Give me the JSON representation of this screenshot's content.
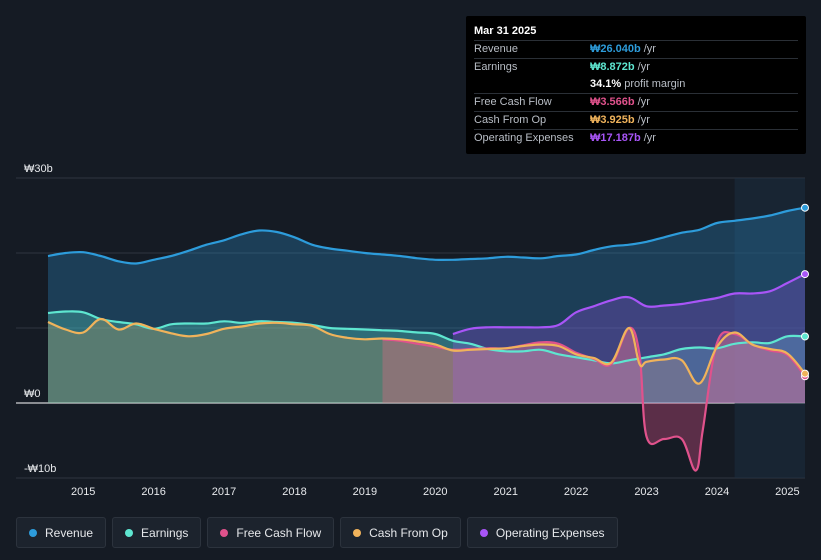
{
  "tooltip": {
    "date": "Mar 31 2025",
    "rows": [
      {
        "label": "Revenue",
        "value": "₩26.040b",
        "unit": "/yr",
        "color": "#2d9cdb"
      },
      {
        "label": "Earnings",
        "value": "₩8.872b",
        "unit": "/yr",
        "color": "#5ee6d0"
      },
      {
        "label": "",
        "value": "34.1%",
        "unit": "profit margin",
        "color": "#ffffff"
      },
      {
        "label": "Free Cash Flow",
        "value": "₩3.566b",
        "unit": "/yr",
        "color": "#e0528c"
      },
      {
        "label": "Cash From Op",
        "value": "₩3.925b",
        "unit": "/yr",
        "color": "#f0b35b"
      },
      {
        "label": "Operating Expenses",
        "value": "₩17.187b",
        "unit": "/yr",
        "color": "#a855f7"
      }
    ]
  },
  "legend": [
    {
      "label": "Revenue",
      "color": "#2d9cdb"
    },
    {
      "label": "Earnings",
      "color": "#5ee6d0"
    },
    {
      "label": "Free Cash Flow",
      "color": "#e0528c"
    },
    {
      "label": "Cash From Op",
      "color": "#f0b35b"
    },
    {
      "label": "Operating Expenses",
      "color": "#a855f7"
    }
  ],
  "chart_data": {
    "type": "area",
    "title": "",
    "unit": "KRW billions",
    "ylim": [
      -10,
      30
    ],
    "y_tick_labels": [
      {
        "value": 30,
        "label": "₩30b"
      },
      {
        "value": 0,
        "label": "₩0"
      },
      {
        "value": -10,
        "label": "-₩10b"
      }
    ],
    "xlim": [
      2014.5,
      2025.25
    ],
    "x_ticks": [
      2015,
      2016,
      2017,
      2018,
      2019,
      2020,
      2021,
      2022,
      2023,
      2024,
      2025
    ],
    "x_tick_labels": [
      "2015",
      "2016",
      "2017",
      "2018",
      "2019",
      "2020",
      "2021",
      "2022",
      "2023",
      "2024",
      "2025"
    ],
    "highlight_from": 2024.25,
    "series": [
      {
        "name": "Revenue",
        "color": "#2d9cdb",
        "x": [
          2014.5,
          2014.75,
          2015.0,
          2015.25,
          2015.5,
          2015.75,
          2016.0,
          2016.25,
          2016.5,
          2016.75,
          2017.0,
          2017.25,
          2017.5,
          2017.75,
          2018.0,
          2018.25,
          2018.5,
          2018.75,
          2019.0,
          2019.25,
          2019.5,
          2019.75,
          2020.0,
          2020.25,
          2020.5,
          2020.75,
          2021.0,
          2021.25,
          2021.5,
          2021.75,
          2022.0,
          2022.25,
          2022.5,
          2022.75,
          2023.0,
          2023.25,
          2023.5,
          2023.75,
          2024.0,
          2024.25,
          2024.5,
          2024.75,
          2025.0,
          2025.25
        ],
        "values": [
          19.6,
          20.0,
          20.1,
          19.6,
          18.9,
          18.6,
          19.1,
          19.6,
          20.3,
          21.1,
          21.7,
          22.5,
          23.0,
          22.8,
          22.1,
          21.1,
          20.6,
          20.3,
          20.0,
          19.8,
          19.6,
          19.3,
          19.1,
          19.1,
          19.2,
          19.3,
          19.5,
          19.4,
          19.3,
          19.6,
          19.8,
          20.4,
          20.9,
          21.1,
          21.5,
          22.1,
          22.7,
          23.1,
          24.0,
          24.3,
          24.6,
          25.0,
          25.6,
          26.04
        ]
      },
      {
        "name": "Earnings",
        "color": "#5ee6d0",
        "x": [
          2014.5,
          2014.75,
          2015.0,
          2015.25,
          2015.5,
          2015.75,
          2016.0,
          2016.25,
          2016.5,
          2016.75,
          2017.0,
          2017.25,
          2017.5,
          2017.75,
          2018.0,
          2018.25,
          2018.5,
          2018.75,
          2019.0,
          2019.25,
          2019.5,
          2019.75,
          2020.0,
          2020.25,
          2020.5,
          2020.75,
          2021.0,
          2021.25,
          2021.5,
          2021.75,
          2022.0,
          2022.25,
          2022.5,
          2022.75,
          2023.0,
          2023.25,
          2023.5,
          2023.75,
          2024.0,
          2024.25,
          2024.5,
          2024.75,
          2025.0,
          2025.25
        ],
        "values": [
          12.0,
          12.2,
          12.1,
          11.2,
          10.8,
          10.5,
          9.9,
          10.5,
          10.6,
          10.6,
          10.9,
          10.7,
          10.9,
          10.8,
          10.7,
          10.4,
          10.0,
          9.9,
          9.8,
          9.7,
          9.6,
          9.4,
          9.2,
          8.3,
          7.9,
          7.2,
          6.9,
          6.9,
          7.1,
          6.5,
          6.1,
          5.7,
          5.3,
          5.7,
          6.1,
          6.5,
          7.2,
          7.4,
          7.3,
          7.9,
          8.1,
          8.0,
          8.9,
          8.872
        ]
      },
      {
        "name": "Free Cash Flow",
        "color": "#e0528c",
        "x": [
          2019.25,
          2019.5,
          2019.75,
          2020.0,
          2020.25,
          2020.5,
          2020.75,
          2021.0,
          2021.25,
          2021.5,
          2021.75,
          2022.0,
          2022.25,
          2022.5,
          2022.75,
          2022.9,
          2023.0,
          2023.25,
          2023.5,
          2023.7,
          2023.8,
          2024.0,
          2024.25,
          2024.5,
          2024.75,
          2025.0,
          2025.25
        ],
        "values": [
          8.5,
          8.3,
          7.9,
          7.5,
          7.1,
          7.2,
          7.3,
          7.3,
          7.7,
          8.1,
          7.9,
          6.7,
          5.9,
          5.2,
          10.0,
          6.5,
          -4.5,
          -4.8,
          -4.8,
          -9.0,
          -3.5,
          8.0,
          9.2,
          7.8,
          7.0,
          6.4,
          3.566
        ]
      },
      {
        "name": "Cash From Op",
        "color": "#f0b35b",
        "x": [
          2014.5,
          2014.75,
          2015.0,
          2015.25,
          2015.5,
          2015.75,
          2016.0,
          2016.25,
          2016.5,
          2016.75,
          2017.0,
          2017.25,
          2017.5,
          2017.75,
          2018.0,
          2018.25,
          2018.5,
          2018.75,
          2019.0,
          2019.25,
          2019.5,
          2019.75,
          2020.0,
          2020.25,
          2020.5,
          2020.75,
          2021.0,
          2021.25,
          2021.5,
          2021.75,
          2022.0,
          2022.25,
          2022.5,
          2022.75,
          2022.9,
          2023.0,
          2023.25,
          2023.5,
          2023.75,
          2024.0,
          2024.25,
          2024.5,
          2024.75,
          2025.0,
          2025.25
        ],
        "values": [
          10.8,
          9.8,
          9.4,
          11.2,
          9.8,
          10.6,
          9.9,
          9.3,
          8.9,
          9.2,
          9.9,
          10.2,
          10.6,
          10.7,
          10.5,
          10.3,
          9.2,
          8.7,
          8.5,
          8.6,
          8.5,
          8.2,
          7.8,
          7.0,
          7.1,
          7.2,
          7.3,
          7.6,
          7.8,
          7.6,
          6.5,
          6.0,
          5.4,
          10.0,
          5.2,
          5.5,
          5.8,
          5.7,
          2.6,
          7.5,
          9.4,
          7.8,
          7.2,
          6.6,
          3.925
        ]
      },
      {
        "name": "Operating Expenses",
        "color": "#a855f7",
        "x": [
          2020.25,
          2020.5,
          2020.75,
          2021.0,
          2021.25,
          2021.5,
          2021.75,
          2022.0,
          2022.25,
          2022.5,
          2022.75,
          2023.0,
          2023.25,
          2023.5,
          2023.75,
          2024.0,
          2024.25,
          2024.5,
          2024.75,
          2025.0,
          2025.25
        ],
        "values": [
          9.2,
          9.9,
          10.1,
          10.1,
          10.1,
          10.1,
          10.4,
          12.1,
          12.9,
          13.7,
          14.1,
          12.9,
          13.0,
          13.2,
          13.6,
          14.0,
          14.6,
          14.6,
          14.9,
          16.0,
          17.187
        ]
      }
    ]
  }
}
